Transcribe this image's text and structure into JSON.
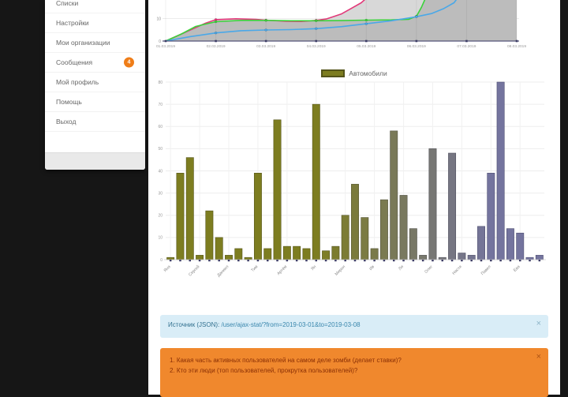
{
  "sidebar": {
    "items": [
      {
        "label": "Списки"
      },
      {
        "label": "Настройки"
      },
      {
        "label": "Мои организации"
      },
      {
        "label": "Сообщения",
        "badge": "4"
      },
      {
        "label": "Мой профиль"
      },
      {
        "label": "Помощь"
      },
      {
        "label": "Выход"
      }
    ]
  },
  "info_bar": {
    "prefix": "Источник (JSON): ",
    "link": "/user/ajax-stat/?from=2019-03-01&to=2019-03-08",
    "close": "×"
  },
  "alert": {
    "items": [
      "1. Какая часть активных пользователей на самом деле зомби (делает ставки)?",
      "2. Кто эти люди (топ пользователей, прокрутка пользователей)?"
    ],
    "close": "×"
  },
  "colors": {
    "pink_line": "#e23a7a",
    "green_line": "#3bd23b",
    "blue_line": "#4aa8e8",
    "area_light": "#d8d8d8",
    "area_dark": "#bcbcbc",
    "bar_olive": "#7d7d20",
    "bar_slate": "#74749e",
    "bar_olive_border": "#55551a",
    "bar_slate_border": "#4f4f73",
    "axis": "#55557a",
    "tick": "#3d3d66",
    "badge_bg": "#ef7d18",
    "alert_bg": "#f0882d",
    "info_bg": "#d9edf7"
  },
  "chart_data": [
    {
      "type": "area",
      "x_labels": [
        "01.03.2019",
        "02.03.2019",
        "03.03.2019",
        "04.03.2019",
        "05.03.2019",
        "06.03.2019",
        "07.03.2019",
        "08.03.2019"
      ],
      "x_range": [
        1,
        8
      ],
      "visible_ylim": [
        0,
        18
      ],
      "y_ticks": [
        0,
        10
      ],
      "note": "top of chart cropped by viewport; all three series exit the visible area",
      "series": [
        {
          "name": "pink",
          "color": "#e23a7a",
          "points": [
            [
              1,
              0
            ],
            [
              1.4,
              4
            ],
            [
              1.8,
              8
            ],
            [
              2,
              9.5
            ],
            [
              2.4,
              9.9
            ],
            [
              2.8,
              9.6
            ],
            [
              3,
              9.3
            ],
            [
              3.4,
              8.8
            ],
            [
              3.7,
              8.7
            ],
            [
              4,
              9.2
            ],
            [
              4.2,
              9.8
            ],
            [
              4.5,
              12
            ],
            [
              4.7,
              14.5
            ],
            [
              4.9,
              17
            ],
            [
              5.05,
              20
            ]
          ]
        },
        {
          "name": "green",
          "color": "#3bd23b",
          "points": [
            [
              1,
              0
            ],
            [
              1.3,
              3
            ],
            [
              1.6,
              6.5
            ],
            [
              2,
              8.6
            ],
            [
              2.5,
              9.2
            ],
            [
              3,
              9.2
            ],
            [
              3.5,
              9.0
            ],
            [
              4,
              9.0
            ],
            [
              4.5,
              9.1
            ],
            [
              5,
              9.3
            ],
            [
              5.5,
              9.4
            ],
            [
              5.85,
              9.7
            ],
            [
              6.0,
              11
            ],
            [
              6.1,
              15
            ],
            [
              6.2,
              20
            ]
          ]
        },
        {
          "name": "blue",
          "color": "#4aa8e8",
          "points": [
            [
              1,
              0
            ],
            [
              1.5,
              2
            ],
            [
              2,
              3.6
            ],
            [
              2.5,
              4.6
            ],
            [
              3,
              4.9
            ],
            [
              3.5,
              5.1
            ],
            [
              4,
              5.5
            ],
            [
              4.5,
              6.4
            ],
            [
              5,
              7.7
            ],
            [
              5.5,
              9.0
            ],
            [
              6,
              10.8
            ],
            [
              6.3,
              12.2
            ],
            [
              6.55,
              14.5
            ],
            [
              6.75,
              17
            ],
            [
              6.85,
              20
            ]
          ]
        }
      ],
      "areas": [
        {
          "fill": "#d8d8d8",
          "follows_series": 0
        },
        {
          "fill": "#bcbcbc",
          "follows_series": 1
        }
      ]
    },
    {
      "type": "bar",
      "legend": "Автомобили",
      "ylim": [
        0,
        80
      ],
      "y_ticks": [
        0,
        10,
        20,
        30,
        40,
        50,
        60,
        70,
        80
      ],
      "values": [
        1,
        39,
        46,
        2,
        22,
        10,
        2,
        5,
        1,
        39,
        5,
        63,
        6,
        6,
        5,
        70,
        4,
        6,
        20,
        34,
        19,
        5,
        27,
        58,
        29,
        14,
        2,
        50,
        1,
        48,
        3,
        2,
        15,
        39,
        80,
        14,
        12,
        1,
        2
      ],
      "labels": [
        "Яна",
        "Сергей",
        "Даниил",
        "Тим",
        "Артём",
        "Ян",
        "Мирон",
        "Ив",
        "Ли",
        "Олег",
        "Настя",
        "Павел",
        "Ева"
      ],
      "label_every": 3,
      "palette": {
        "start": "#7d7d20",
        "end": "#74749e",
        "transition_start_index": 15,
        "transition_span": 18
      }
    }
  ]
}
